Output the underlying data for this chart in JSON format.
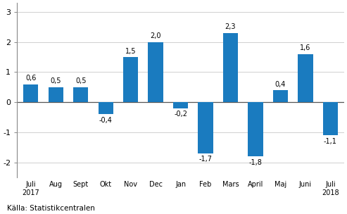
{
  "categories": [
    "Juli\n2017",
    "Aug",
    "Sept",
    "Okt",
    "Nov",
    "Dec",
    "Jan",
    "Feb",
    "Mars",
    "April",
    "Maj",
    "Juni",
    "Juli\n2018"
  ],
  "values": [
    0.6,
    0.5,
    0.5,
    -0.4,
    1.5,
    2.0,
    -0.2,
    -1.7,
    2.3,
    -1.8,
    0.4,
    1.6,
    -1.1
  ],
  "bar_color": "#1a7bbf",
  "ylim": [
    -2.5,
    3.3
  ],
  "yticks": [
    -2,
    -1,
    0,
    1,
    2,
    3
  ],
  "source_text": "Källa: Statistikcentralen",
  "background_color": "#ffffff",
  "grid_color": "#d0d0d0",
  "spine_color": "#888888"
}
